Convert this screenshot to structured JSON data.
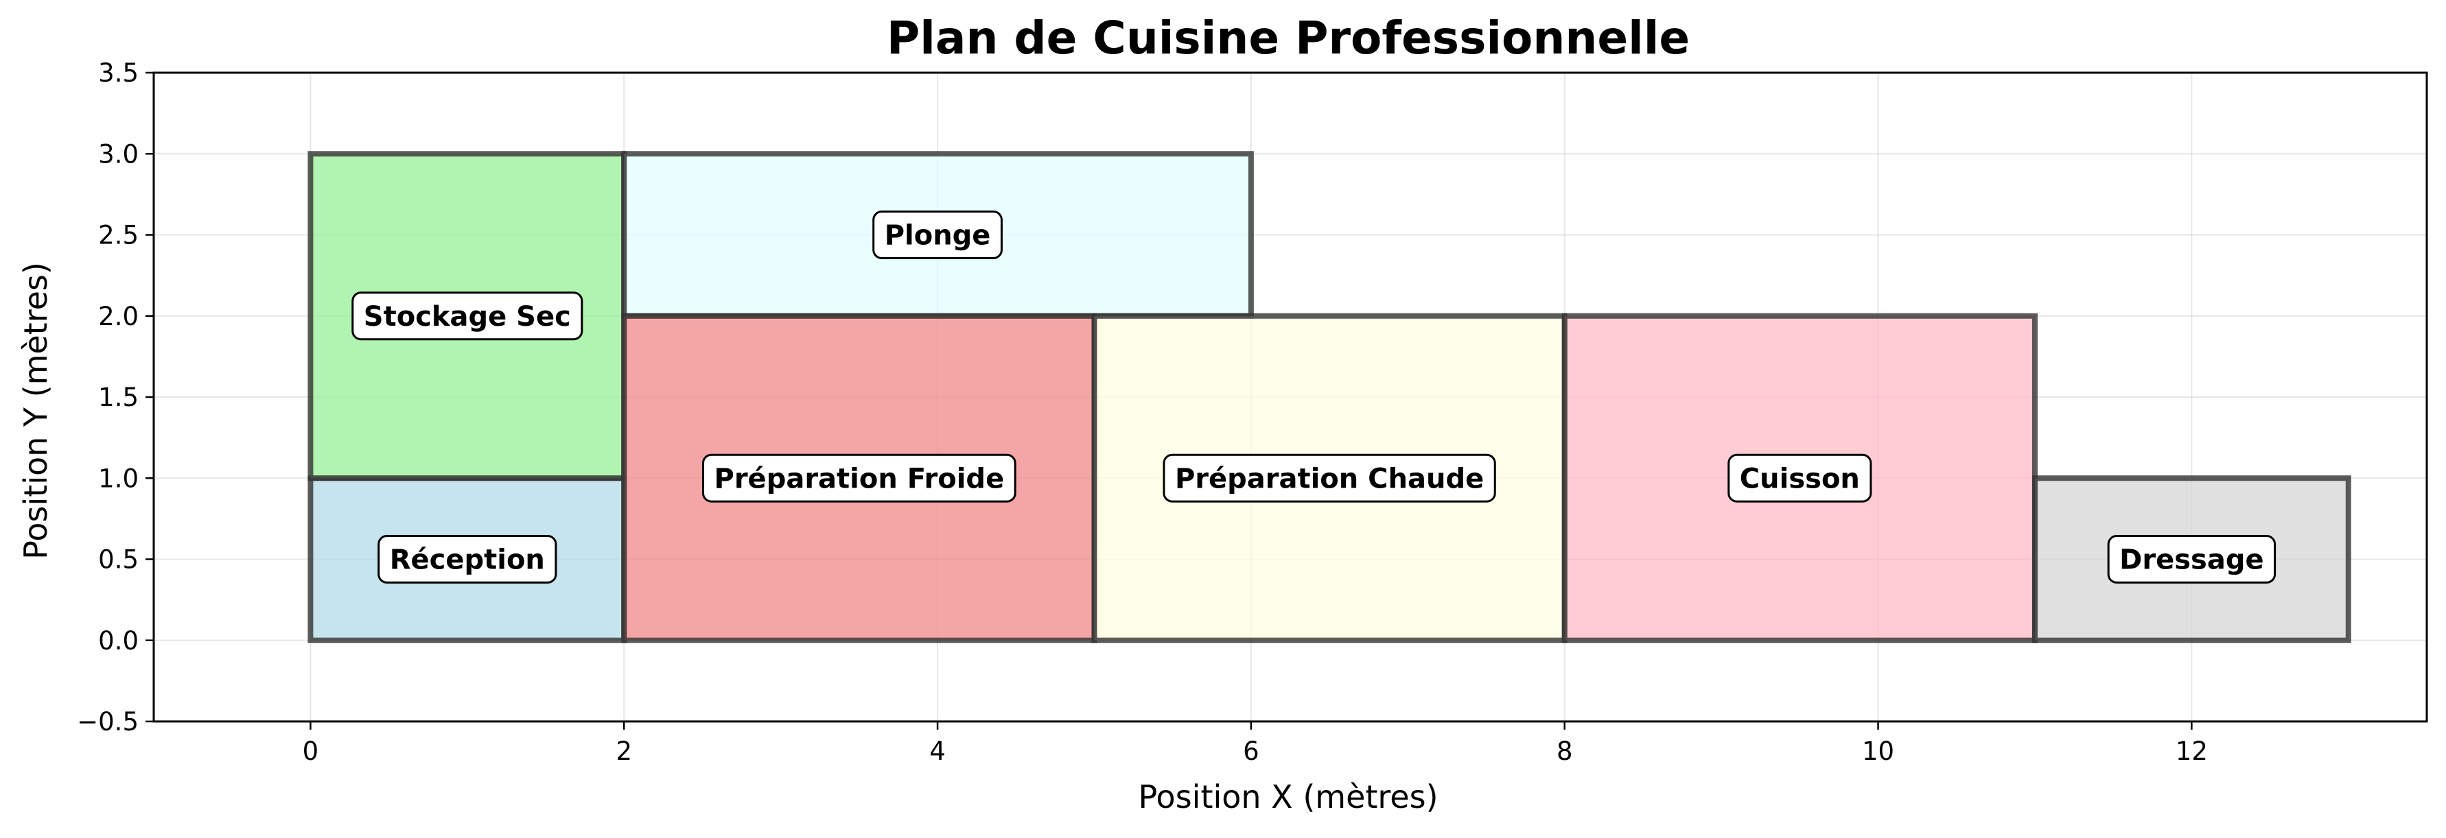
{
  "chart_data": {
    "type": "floor-plan",
    "title": "Plan de Cuisine Professionnelle",
    "xlabel": "Position X (mètres)",
    "ylabel": "Position Y (mètres)",
    "xlim": [
      -1,
      13.5
    ],
    "ylim": [
      -0.5,
      3.5
    ],
    "x_ticks": [
      0,
      2,
      4,
      6,
      8,
      10,
      12
    ],
    "y_ticks": [
      -0.5,
      0.0,
      0.5,
      1.0,
      1.5,
      2.0,
      2.5,
      3.0,
      3.5
    ],
    "x_tick_labels": [
      "0",
      "2",
      "4",
      "6",
      "8",
      "10",
      "12"
    ],
    "y_tick_labels": [
      "−0.5",
      "0.0",
      "0.5",
      "1.0",
      "1.5",
      "2.0",
      "2.5",
      "3.0",
      "3.5"
    ],
    "grid": true,
    "zones": [
      {
        "name": "Réception",
        "x0": 0,
        "y0": 0,
        "x1": 2,
        "y1": 1,
        "color": "#add8e6"
      },
      {
        "name": "Stockage Sec",
        "x0": 0,
        "y0": 1,
        "x1": 2,
        "y1": 3,
        "color": "#90ee90"
      },
      {
        "name": "Plonge",
        "x0": 2,
        "y0": 2,
        "x1": 6,
        "y1": 3,
        "color": "#e0ffff"
      },
      {
        "name": "Préparation Froide",
        "x0": 2,
        "y0": 0,
        "x1": 5,
        "y1": 2,
        "color": "#f08080"
      },
      {
        "name": "Préparation Chaude",
        "x0": 5,
        "y0": 0,
        "x1": 8,
        "y1": 2,
        "color": "#ffffe0"
      },
      {
        "name": "Cuisson",
        "x0": 8,
        "y0": 0,
        "x1": 11,
        "y1": 2,
        "color": "#ffb6c1"
      },
      {
        "name": "Dressage",
        "x0": 11,
        "y0": 0,
        "x1": 13,
        "y1": 1,
        "color": "#d3d3d3"
      }
    ]
  }
}
